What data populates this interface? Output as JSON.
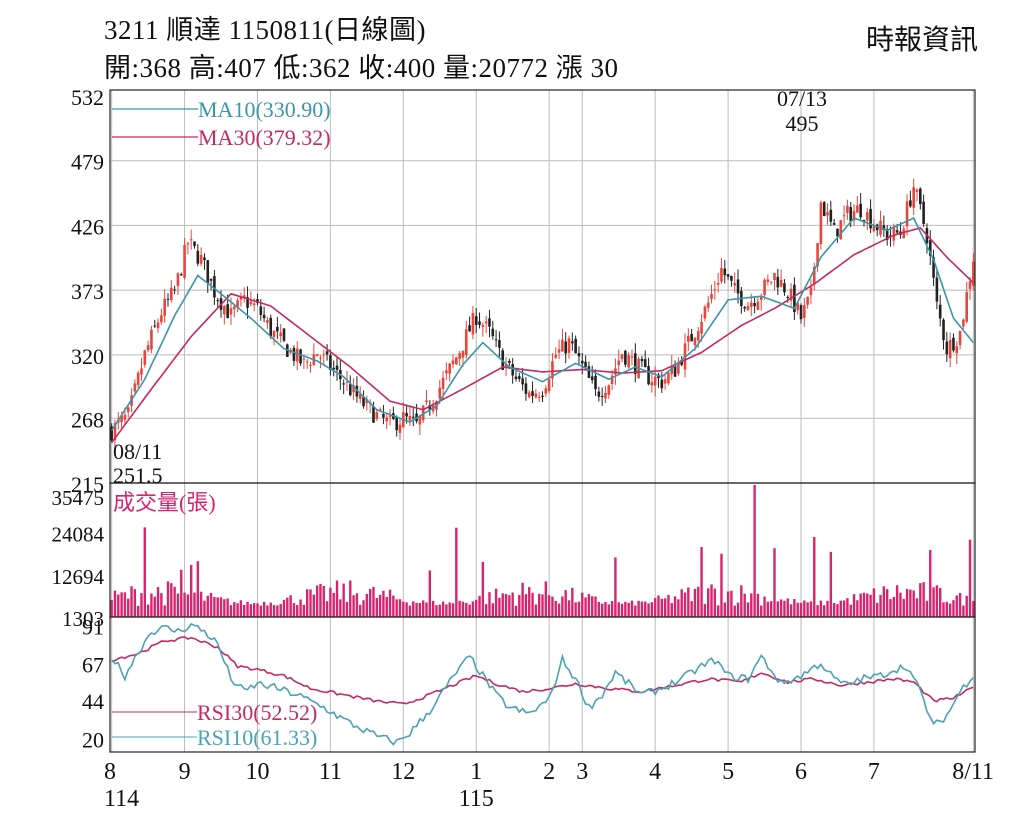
{
  "header": {
    "title": "3211  順達 1150811(日線圖)",
    "quote": "開:368 高:407 低:362 收:400 量:20772 漲 30",
    "source": "時報資訊"
  },
  "colors": {
    "up": "#e8453c",
    "down": "#222222",
    "ma10": "#3a96a8",
    "ma30": "#c42a62",
    "volume": "#d6246e",
    "rsi10": "#4aa3b4",
    "rsi30": "#c42a62",
    "grid": "#bbbbbb"
  },
  "chart_data": [
    {
      "type": "candlestick",
      "name": "price",
      "ylim": [
        215,
        532
      ],
      "yticks": [
        "532",
        "479",
        "426",
        "373",
        "320",
        "268",
        "215"
      ],
      "legend": [
        {
          "label": "MA10(330.90)",
          "color_key": "ma10"
        },
        {
          "label": "MA30(379.32)",
          "color_key": "ma30"
        }
      ],
      "annotations": [
        {
          "date": "07/13",
          "value": "495",
          "at_day": 208
        },
        {
          "date": "08/11",
          "value": "251.5",
          "at_day": 2
        }
      ],
      "anchors": [
        [
          0,
          258
        ],
        [
          5,
          270
        ],
        [
          10,
          320
        ],
        [
          15,
          355
        ],
        [
          19,
          372
        ],
        [
          23,
          412
        ],
        [
          27,
          398
        ],
        [
          31,
          372
        ],
        [
          36,
          352
        ],
        [
          40,
          365
        ],
        [
          44,
          358
        ],
        [
          48,
          340
        ],
        [
          53,
          325
        ],
        [
          58,
          312
        ],
        [
          62,
          322
        ],
        [
          66,
          310
        ],
        [
          70,
          298
        ],
        [
          75,
          282
        ],
        [
          80,
          270
        ],
        [
          84,
          263
        ],
        [
          88,
          268
        ],
        [
          92,
          262
        ],
        [
          96,
          280
        ],
        [
          100,
          298
        ],
        [
          104,
          318
        ],
        [
          107,
          335
        ],
        [
          110,
          352
        ],
        [
          114,
          338
        ],
        [
          118,
          315
        ],
        [
          122,
          300
        ],
        [
          126,
          288
        ],
        [
          130,
          292
        ],
        [
          134,
          320
        ],
        [
          138,
          330
        ],
        [
          142,
          310
        ],
        [
          146,
          288
        ],
        [
          150,
          298
        ],
        [
          154,
          322
        ],
        [
          158,
          312
        ],
        [
          162,
          302
        ],
        [
          166,
          298
        ],
        [
          170,
          308
        ],
        [
          176,
          340
        ],
        [
          180,
          362
        ],
        [
          184,
          390
        ],
        [
          188,
          372
        ],
        [
          192,
          362
        ],
        [
          196,
          372
        ],
        [
          200,
          385
        ],
        [
          204,
          372
        ],
        [
          208,
          350
        ],
        [
          211,
          368
        ],
        [
          214,
          445
        ],
        [
          218,
          420
        ],
        [
          222,
          435
        ],
        [
          226,
          440
        ],
        [
          230,
          428
        ],
        [
          234,
          418
        ],
        [
          238,
          420
        ],
        [
          242,
          458
        ],
        [
          246,
          418
        ],
        [
          249,
          360
        ],
        [
          252,
          325
        ],
        [
          256,
          338
        ],
        [
          260,
          400
        ]
      ],
      "ma10_anchors": [
        [
          0,
          258
        ],
        [
          10,
          300
        ],
        [
          19,
          352
        ],
        [
          26,
          385
        ],
        [
          33,
          370
        ],
        [
          42,
          350
        ],
        [
          52,
          325
        ],
        [
          62,
          315
        ],
        [
          70,
          302
        ],
        [
          80,
          275
        ],
        [
          90,
          265
        ],
        [
          98,
          278
        ],
        [
          106,
          312
        ],
        [
          112,
          330
        ],
        [
          120,
          310
        ],
        [
          130,
          298
        ],
        [
          140,
          313
        ],
        [
          150,
          300
        ],
        [
          158,
          310
        ],
        [
          166,
          302
        ],
        [
          176,
          325
        ],
        [
          186,
          365
        ],
        [
          196,
          368
        ],
        [
          206,
          358
        ],
        [
          214,
          400
        ],
        [
          224,
          432
        ],
        [
          234,
          422
        ],
        [
          242,
          432
        ],
        [
          248,
          398
        ],
        [
          254,
          350
        ],
        [
          260,
          330
        ]
      ],
      "ma30_anchors": [
        [
          0,
          248
        ],
        [
          12,
          292
        ],
        [
          24,
          335
        ],
        [
          36,
          370
        ],
        [
          48,
          360
        ],
        [
          60,
          335
        ],
        [
          72,
          310
        ],
        [
          84,
          282
        ],
        [
          94,
          275
        ],
        [
          106,
          292
        ],
        [
          118,
          310
        ],
        [
          130,
          306
        ],
        [
          142,
          308
        ],
        [
          154,
          305
        ],
        [
          166,
          307
        ],
        [
          178,
          322
        ],
        [
          190,
          344
        ],
        [
          200,
          358
        ],
        [
          212,
          378
        ],
        [
          224,
          402
        ],
        [
          236,
          418
        ],
        [
          244,
          424
        ],
        [
          252,
          400
        ],
        [
          260,
          379
        ]
      ]
    },
    {
      "type": "bar",
      "name": "volume",
      "label": "成交量(張)",
      "yticks": [
        "35475",
        "24084",
        "12694",
        "1303"
      ],
      "ylim": [
        0,
        35475
      ],
      "peaks": [
        [
          10,
          24084
        ],
        [
          21,
          12694
        ],
        [
          24,
          14000
        ],
        [
          26,
          15000
        ],
        [
          96,
          12500
        ],
        [
          104,
          24000
        ],
        [
          112,
          14800
        ],
        [
          152,
          16000
        ],
        [
          178,
          18800
        ],
        [
          184,
          17000
        ],
        [
          194,
          35475
        ],
        [
          200,
          18500
        ],
        [
          212,
          21500
        ],
        [
          217,
          17500
        ],
        [
          247,
          18000
        ],
        [
          259,
          20772
        ]
      ]
    },
    {
      "type": "line",
      "name": "rsi",
      "yticks": [
        "91",
        "67",
        "44",
        "20"
      ],
      "ylim": [
        12,
        97
      ],
      "legend": [
        {
          "label": "RSI30(52.52)",
          "color_key": "rsi30"
        },
        {
          "label": "RSI10(61.33)",
          "color_key": "rsi10"
        }
      ],
      "rsi10_anchors": [
        [
          0,
          72
        ],
        [
          4,
          60
        ],
        [
          8,
          75
        ],
        [
          12,
          88
        ],
        [
          16,
          90
        ],
        [
          20,
          88
        ],
        [
          24,
          92
        ],
        [
          28,
          88
        ],
        [
          32,
          80
        ],
        [
          36,
          58
        ],
        [
          40,
          50
        ],
        [
          44,
          55
        ],
        [
          50,
          52
        ],
        [
          56,
          48
        ],
        [
          64,
          40
        ],
        [
          72,
          30
        ],
        [
          80,
          22
        ],
        [
          86,
          18
        ],
        [
          90,
          24
        ],
        [
          96,
          38
        ],
        [
          100,
          50
        ],
        [
          104,
          62
        ],
        [
          108,
          72
        ],
        [
          112,
          60
        ],
        [
          116,
          48
        ],
        [
          120,
          40
        ],
        [
          126,
          36
        ],
        [
          132,
          45
        ],
        [
          136,
          70
        ],
        [
          140,
          58
        ],
        [
          144,
          40
        ],
        [
          148,
          48
        ],
        [
          152,
          62
        ],
        [
          156,
          55
        ],
        [
          160,
          48
        ],
        [
          166,
          52
        ],
        [
          172,
          58
        ],
        [
          178,
          66
        ],
        [
          182,
          70
        ],
        [
          186,
          60
        ],
        [
          192,
          58
        ],
        [
          196,
          72
        ],
        [
          202,
          55
        ],
        [
          208,
          60
        ],
        [
          214,
          68
        ],
        [
          218,
          58
        ],
        [
          222,
          54
        ],
        [
          226,
          58
        ],
        [
          232,
          60
        ],
        [
          236,
          64
        ],
        [
          240,
          66
        ],
        [
          244,
          50
        ],
        [
          248,
          28
        ],
        [
          252,
          35
        ],
        [
          256,
          50
        ],
        [
          260,
          61
        ]
      ],
      "rsi30_anchors": [
        [
          0,
          70
        ],
        [
          8,
          74
        ],
        [
          16,
          82
        ],
        [
          24,
          84
        ],
        [
          32,
          78
        ],
        [
          38,
          66
        ],
        [
          44,
          64
        ],
        [
          52,
          60
        ],
        [
          60,
          52
        ],
        [
          70,
          48
        ],
        [
          80,
          44
        ],
        [
          88,
          42
        ],
        [
          96,
          48
        ],
        [
          104,
          55
        ],
        [
          110,
          60
        ],
        [
          116,
          55
        ],
        [
          124,
          50
        ],
        [
          132,
          52
        ],
        [
          140,
          55
        ],
        [
          150,
          52
        ],
        [
          160,
          50
        ],
        [
          170,
          54
        ],
        [
          180,
          58
        ],
        [
          190,
          56
        ],
        [
          196,
          62
        ],
        [
          204,
          56
        ],
        [
          212,
          58
        ],
        [
          220,
          54
        ],
        [
          228,
          56
        ],
        [
          236,
          58
        ],
        [
          242,
          56
        ],
        [
          248,
          44
        ],
        [
          254,
          46
        ],
        [
          260,
          52.5
        ]
      ]
    },
    {
      "type": "axis",
      "name": "months",
      "ticks": [
        {
          "label": "8",
          "sub": "114",
          "day": 0
        },
        {
          "label": "9",
          "day": 22
        },
        {
          "label": "10",
          "day": 44
        },
        {
          "label": "11",
          "day": 66
        },
        {
          "label": "12",
          "day": 88
        },
        {
          "label": "1",
          "sub": "115",
          "day": 110
        },
        {
          "label": "2",
          "day": 132
        },
        {
          "label": "3",
          "day": 142
        },
        {
          "label": "4",
          "day": 164
        },
        {
          "label": "5",
          "day": 186
        },
        {
          "label": "6",
          "day": 208
        },
        {
          "label": "7",
          "day": 230
        },
        {
          "label": "8/11",
          "day": 260
        }
      ]
    }
  ]
}
